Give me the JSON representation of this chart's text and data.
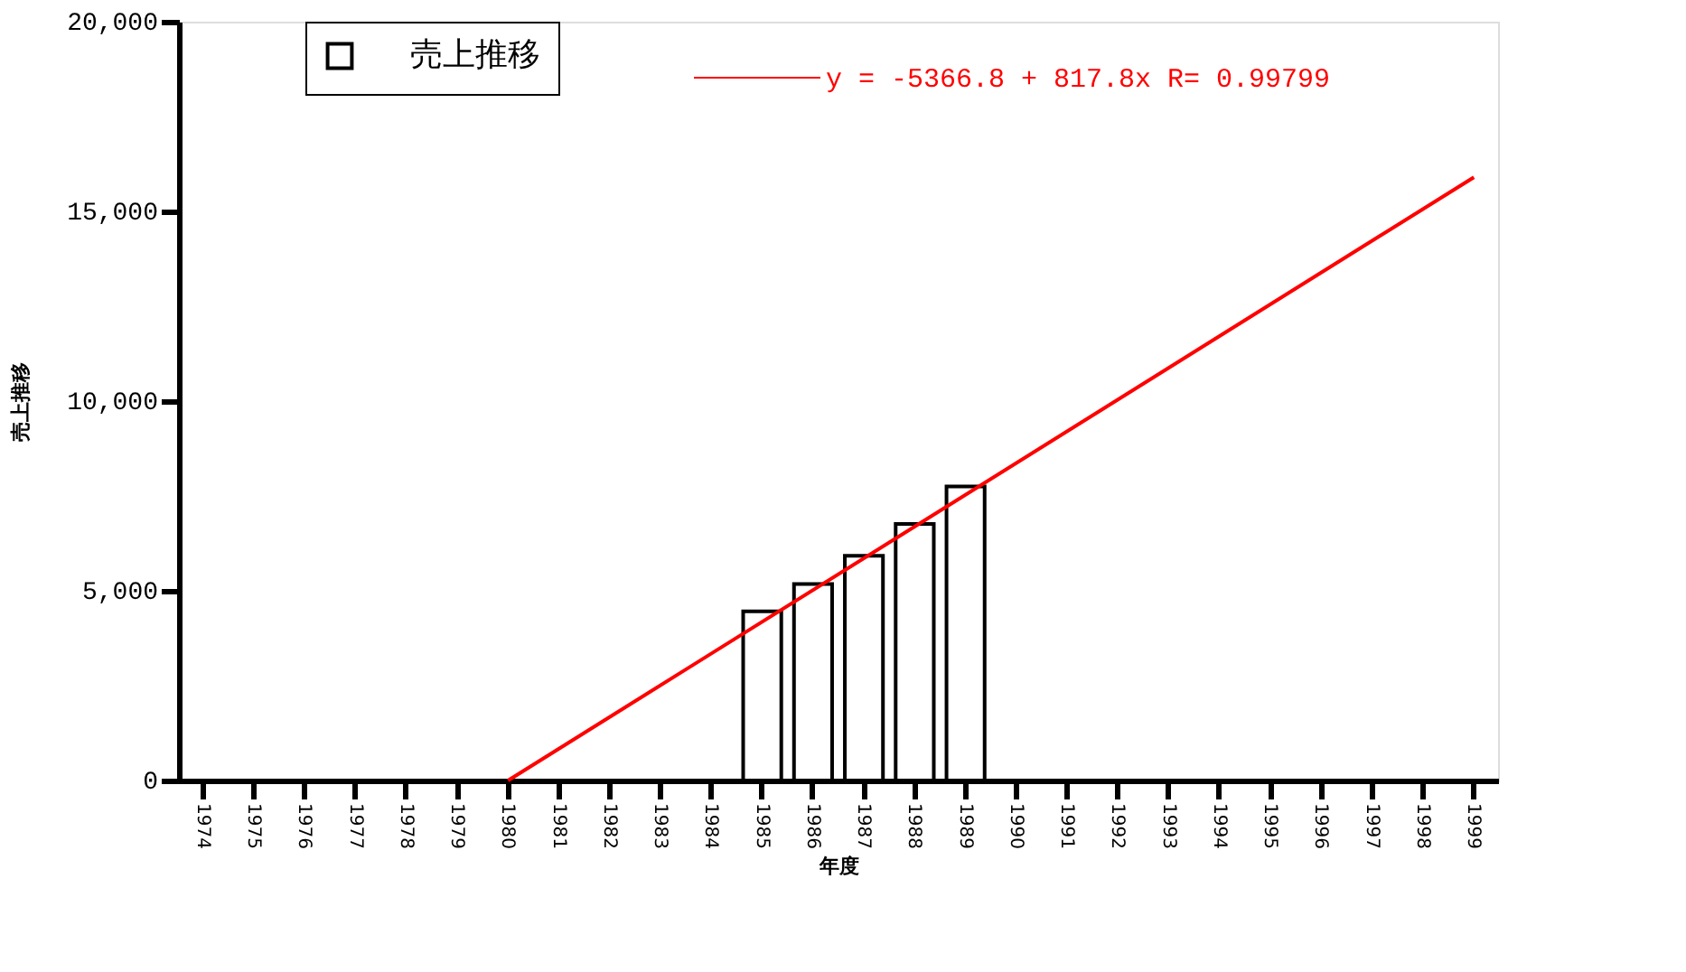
{
  "chart_data": {
    "type": "bar",
    "xlabel": "年度",
    "ylabel": "売上推移",
    "categories": [
      "1974",
      "1975",
      "1976",
      "1977",
      "1978",
      "1979",
      "1980",
      "1981",
      "1982",
      "1983",
      "1984",
      "1985",
      "1986",
      "1987",
      "1988",
      "1989",
      "1990",
      "1991",
      "1992",
      "1993",
      "1994",
      "1995",
      "1996",
      "1997",
      "1998",
      "1999"
    ],
    "series": [
      {
        "name": "売上推移",
        "color": "#ffffff",
        "values": [
          null,
          null,
          null,
          null,
          null,
          null,
          null,
          null,
          null,
          null,
          null,
          4460,
          5180,
          5920,
          6760,
          7750,
          null,
          null,
          null,
          null,
          null,
          null,
          null,
          null,
          null,
          null
        ]
      },
      {
        "name": "y = -5366.8 + 817.8x   R= 0.99799",
        "type": "line",
        "color": "#ff0000",
        "values": [
          null,
          null,
          null,
          null,
          null,
          null,
          0,
          null,
          null,
          null,
          null,
          null,
          null,
          null,
          null,
          null,
          null,
          null,
          null,
          null,
          null,
          null,
          null,
          null,
          null,
          15900
        ]
      }
    ],
    "ylim": [
      0,
      20000
    ],
    "yticks": [
      0,
      {
        "value": 5000,
        "label": "5,000"
      },
      {
        "value": 10000,
        "label": "10,000"
      },
      {
        "value": 15000,
        "label": "15,000"
      },
      {
        "value": 20000,
        "label": "20,000"
      }
    ],
    "grid": false,
    "legend": "top",
    "marker": "none"
  }
}
